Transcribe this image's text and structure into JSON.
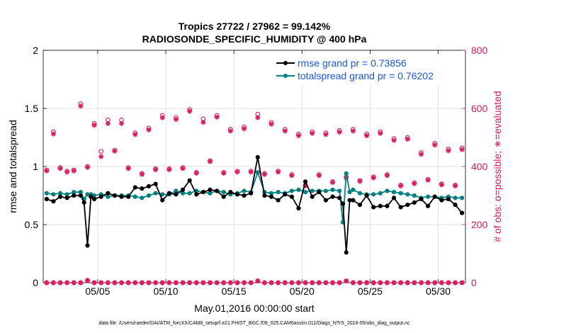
{
  "chart_data": {
    "type": "line",
    "title": "Tropics 27722 / 27962 = 99.142%",
    "subtitle": "RADIOSONDE_SPECIFIC_HUMIDITY @ 400 hPa",
    "xlabel": "May.01,2016 00:00:00 start",
    "ylabel_left": "rmse and totalspread",
    "ylabel_right": "# of obs: o=possible; ∗=evaluated",
    "footer": "data file: /Users/raeder/DAI/ATM_forcXX/CAM6_setup/f.e21.FHIST_BGC.f09_025.CAM6assim.011/Diags_NTrS_2016-05/obs_diag_output.nc",
    "xlim": [
      1,
      32
    ],
    "ylim_left": [
      0,
      2
    ],
    "ylim_right": [
      0,
      800
    ],
    "x_ticks": [
      5,
      10,
      15,
      20,
      25,
      30
    ],
    "x_tick_labels": [
      "05/05",
      "05/10",
      "05/15",
      "05/20",
      "05/25",
      "05/30"
    ],
    "y_ticks_left": [
      0,
      0.5,
      1,
      1.5,
      2
    ],
    "y_tick_labels_left": [
      "0",
      "0.5",
      "1",
      "1.5",
      "2"
    ],
    "y_ticks_right": [
      0,
      200,
      400,
      600,
      800
    ],
    "y_tick_labels_right": [
      "0",
      "200",
      "400",
      "600",
      "800"
    ],
    "colors": {
      "rmse": "#000000",
      "spread": "#008080",
      "counts": "#e0165a",
      "legend_text": "#1a55e6",
      "grid": "#d9d9d9"
    },
    "legend": [
      {
        "name": "rmse grand pr = 0.73856",
        "color": "#000000"
      },
      {
        "name": "totalspread grand pr = 0.76202",
        "color": "#008080"
      }
    ],
    "rmse_points": [
      [
        1.25,
        0.72
      ],
      [
        1.75,
        0.7
      ],
      [
        2.25,
        0.74
      ],
      [
        2.75,
        0.73
      ],
      [
        3.25,
        0.75
      ],
      [
        3.75,
        0.75
      ],
      [
        4.0,
        0.69
      ],
      [
        4.25,
        0.32
      ],
      [
        4.5,
        0.74
      ],
      [
        4.75,
        0.72
      ],
      [
        5.25,
        0.74
      ],
      [
        5.75,
        0.77
      ],
      [
        6.25,
        0.75
      ],
      [
        6.75,
        0.74
      ],
      [
        7.25,
        0.74
      ],
      [
        7.75,
        0.82
      ],
      [
        8.25,
        0.81
      ],
      [
        8.75,
        0.83
      ],
      [
        9.25,
        0.85
      ],
      [
        9.75,
        0.71
      ],
      [
        10.25,
        0.77
      ],
      [
        10.75,
        0.76
      ],
      [
        11.25,
        0.8
      ],
      [
        11.75,
        0.88
      ],
      [
        12.25,
        0.76
      ],
      [
        12.75,
        0.78
      ],
      [
        13.25,
        0.8
      ],
      [
        13.75,
        0.79
      ],
      [
        14.25,
        0.74
      ],
      [
        14.75,
        0.78
      ],
      [
        15.25,
        0.76
      ],
      [
        15.75,
        0.75
      ],
      [
        16.25,
        0.77
      ],
      [
        16.75,
        1.08
      ],
      [
        17.25,
        0.75
      ],
      [
        17.75,
        0.74
      ],
      [
        18.25,
        0.71
      ],
      [
        18.75,
        0.76
      ],
      [
        19.25,
        0.74
      ],
      [
        19.75,
        0.64
      ],
      [
        20.25,
        0.87
      ],
      [
        20.75,
        0.74
      ],
      [
        21.25,
        0.78
      ],
      [
        21.75,
        0.71
      ],
      [
        22.25,
        0.74
      ],
      [
        22.75,
        0.73
      ],
      [
        23.0,
        0.68
      ],
      [
        23.25,
        0.26
      ],
      [
        23.5,
        0.71
      ],
      [
        23.75,
        0.71
      ],
      [
        24.25,
        0.67
      ],
      [
        24.75,
        0.75
      ],
      [
        25.25,
        0.65
      ],
      [
        25.75,
        0.66
      ],
      [
        26.25,
        0.66
      ],
      [
        26.75,
        0.73
      ],
      [
        27.25,
        0.65
      ],
      [
        27.75,
        0.67
      ],
      [
        28.25,
        0.69
      ],
      [
        28.75,
        0.72
      ],
      [
        29.25,
        0.66
      ],
      [
        29.75,
        0.74
      ],
      [
        30.25,
        0.71
      ],
      [
        30.75,
        0.72
      ],
      [
        31.25,
        0.67
      ],
      [
        31.75,
        0.6
      ]
    ],
    "spread_points": [
      [
        1.25,
        0.77
      ],
      [
        1.75,
        0.76
      ],
      [
        2.25,
        0.77
      ],
      [
        2.75,
        0.76
      ],
      [
        3.25,
        0.78
      ],
      [
        3.75,
        0.78
      ],
      [
        4.0,
        0.72
      ],
      [
        4.25,
        0.76
      ],
      [
        4.5,
        0.76
      ],
      [
        4.75,
        0.75
      ],
      [
        5.25,
        0.76
      ],
      [
        5.75,
        0.74
      ],
      [
        6.25,
        0.75
      ],
      [
        6.75,
        0.75
      ],
      [
        7.25,
        0.75
      ],
      [
        7.75,
        0.74
      ],
      [
        8.25,
        0.73
      ],
      [
        8.75,
        0.75
      ],
      [
        9.25,
        0.77
      ],
      [
        9.75,
        0.76
      ],
      [
        10.25,
        0.76
      ],
      [
        10.75,
        0.79
      ],
      [
        11.25,
        0.77
      ],
      [
        11.75,
        0.77
      ],
      [
        12.25,
        0.79
      ],
      [
        12.75,
        0.78
      ],
      [
        13.25,
        0.77
      ],
      [
        13.75,
        0.79
      ],
      [
        14.25,
        0.78
      ],
      [
        14.75,
        0.76
      ],
      [
        15.25,
        0.77
      ],
      [
        15.75,
        0.79
      ],
      [
        16.25,
        0.78
      ],
      [
        16.75,
        0.95
      ],
      [
        17.25,
        0.78
      ],
      [
        17.75,
        0.77
      ],
      [
        18.25,
        0.78
      ],
      [
        18.75,
        0.77
      ],
      [
        19.25,
        0.79
      ],
      [
        19.75,
        0.8
      ],
      [
        20.25,
        0.78
      ],
      [
        20.75,
        0.79
      ],
      [
        21.25,
        0.79
      ],
      [
        21.75,
        0.79
      ],
      [
        22.25,
        0.8
      ],
      [
        22.75,
        0.79
      ],
      [
        23.0,
        0.52
      ],
      [
        23.25,
        0.94
      ],
      [
        23.5,
        0.78
      ],
      [
        23.75,
        0.8
      ],
      [
        24.25,
        0.77
      ],
      [
        24.75,
        0.76
      ],
      [
        25.25,
        0.76
      ],
      [
        25.75,
        0.77
      ],
      [
        26.25,
        0.79
      ],
      [
        26.75,
        0.78
      ],
      [
        27.25,
        0.77
      ],
      [
        27.75,
        0.76
      ],
      [
        28.25,
        0.75
      ],
      [
        28.75,
        0.73
      ],
      [
        29.25,
        0.74
      ],
      [
        29.75,
        0.74
      ],
      [
        30.25,
        0.73
      ],
      [
        30.75,
        0.74
      ],
      [
        31.25,
        0.73
      ],
      [
        31.75,
        0.73
      ]
    ],
    "possible_counts": [
      [
        1.25,
        388
      ],
      [
        1.75,
        520
      ],
      [
        2.25,
        396
      ],
      [
        2.75,
        384
      ],
      [
        3.25,
        388
      ],
      [
        3.75,
        616
      ],
      [
        4.25,
        400
      ],
      [
        4.75,
        548
      ],
      [
        5.25,
        452
      ],
      [
        5.75,
        560
      ],
      [
        6.25,
        456
      ],
      [
        6.75,
        560
      ],
      [
        7.25,
        396
      ],
      [
        7.75,
        516
      ],
      [
        8.25,
        376
      ],
      [
        8.75,
        532
      ],
      [
        9.25,
        392
      ],
      [
        9.75,
        576
      ],
      [
        10.25,
        392
      ],
      [
        10.75,
        568
      ],
      [
        11.25,
        396
      ],
      [
        11.75,
        596
      ],
      [
        12.25,
        380
      ],
      [
        12.75,
        564
      ],
      [
        13.25,
        420
      ],
      [
        13.75,
        576
      ],
      [
        14.25,
        380
      ],
      [
        14.75,
        528
      ],
      [
        15.25,
        384
      ],
      [
        15.75,
        536
      ],
      [
        16.25,
        384
      ],
      [
        16.75,
        580
      ],
      [
        17.25,
        376
      ],
      [
        17.75,
        552
      ],
      [
        18.25,
        384
      ],
      [
        18.75,
        528
      ],
      [
        19.25,
        372
      ],
      [
        19.75,
        512
      ],
      [
        20.25,
        336
      ],
      [
        20.75,
        520
      ],
      [
        21.25,
        372
      ],
      [
        21.75,
        516
      ],
      [
        22.25,
        348
      ],
      [
        22.75,
        524
      ],
      [
        23.25,
        364
      ],
      [
        23.75,
        528
      ],
      [
        24.25,
        352
      ],
      [
        24.75,
        512
      ],
      [
        25.25,
        364
      ],
      [
        25.75,
        520
      ],
      [
        26.25,
        372
      ],
      [
        26.75,
        496
      ],
      [
        27.25,
        336
      ],
      [
        27.75,
        500
      ],
      [
        28.25,
        344
      ],
      [
        28.75,
        448
      ],
      [
        29.25,
        356
      ],
      [
        29.75,
        480
      ],
      [
        30.25,
        340
      ],
      [
        30.75,
        460
      ],
      [
        31.25,
        336
      ],
      [
        31.75,
        464
      ]
    ],
    "evaluated_counts": [
      [
        1.25,
        385
      ],
      [
        1.75,
        512
      ],
      [
        2.25,
        393
      ],
      [
        2.75,
        381
      ],
      [
        3.25,
        385
      ],
      [
        3.75,
        608
      ],
      [
        4.25,
        397
      ],
      [
        4.75,
        542
      ],
      [
        5.25,
        434
      ],
      [
        5.75,
        548
      ],
      [
        6.25,
        453
      ],
      [
        6.75,
        548
      ],
      [
        7.25,
        393
      ],
      [
        7.75,
        510
      ],
      [
        8.25,
        373
      ],
      [
        8.75,
        526
      ],
      [
        9.25,
        389
      ],
      [
        9.75,
        568
      ],
      [
        10.25,
        389
      ],
      [
        10.75,
        562
      ],
      [
        11.25,
        393
      ],
      [
        11.75,
        590
      ],
      [
        12.25,
        377
      ],
      [
        12.75,
        552
      ],
      [
        13.25,
        417
      ],
      [
        13.75,
        570
      ],
      [
        14.25,
        377
      ],
      [
        14.75,
        522
      ],
      [
        15.25,
        381
      ],
      [
        15.75,
        530
      ],
      [
        16.25,
        381
      ],
      [
        16.75,
        568
      ],
      [
        17.25,
        373
      ],
      [
        17.75,
        546
      ],
      [
        18.25,
        381
      ],
      [
        18.75,
        522
      ],
      [
        19.25,
        369
      ],
      [
        19.75,
        506
      ],
      [
        20.25,
        333
      ],
      [
        20.75,
        514
      ],
      [
        21.25,
        369
      ],
      [
        21.75,
        510
      ],
      [
        22.25,
        345
      ],
      [
        22.75,
        518
      ],
      [
        23.25,
        361
      ],
      [
        23.75,
        522
      ],
      [
        24.25,
        349
      ],
      [
        24.75,
        506
      ],
      [
        25.25,
        361
      ],
      [
        25.75,
        514
      ],
      [
        26.25,
        369
      ],
      [
        26.75,
        490
      ],
      [
        27.25,
        333
      ],
      [
        27.75,
        494
      ],
      [
        28.25,
        341
      ],
      [
        28.75,
        442
      ],
      [
        29.25,
        353
      ],
      [
        29.75,
        474
      ],
      [
        30.25,
        337
      ],
      [
        30.75,
        454
      ],
      [
        31.25,
        333
      ],
      [
        31.75,
        458
      ]
    ],
    "low_counts_x": [
      1.25,
      1.75,
      2.25,
      2.75,
      3.25,
      3.75,
      4.25,
      4.75,
      5.25,
      5.75,
      6.25,
      6.75,
      7.25,
      7.75,
      8.25,
      8.75,
      9.25,
      9.75,
      10.25,
      10.75,
      11.25,
      11.75,
      12.25,
      12.75,
      13.25,
      13.75,
      14.25,
      14.75,
      15.25,
      15.75,
      16.25,
      16.75,
      17.25,
      17.75,
      18.25,
      18.75,
      19.25,
      19.75,
      20.25,
      20.75,
      21.25,
      21.75,
      22.25,
      22.75,
      23.25,
      23.75,
      24.25,
      24.75,
      25.25,
      25.75,
      26.25,
      26.75,
      27.25,
      27.75,
      28.25,
      28.75,
      29.25,
      29.75,
      30.25,
      30.75,
      31.25,
      31.75
    ],
    "low_counts_y": [
      0,
      0,
      0,
      0,
      0,
      0,
      8,
      0,
      0,
      0,
      0,
      0,
      0,
      0,
      0,
      0,
      0,
      0,
      0,
      0,
      0,
      0,
      0,
      0,
      0,
      0,
      0,
      0,
      0,
      0,
      0,
      6,
      0,
      0,
      0,
      0,
      0,
      0,
      0,
      0,
      0,
      0,
      0,
      0,
      6,
      0,
      0,
      0,
      0,
      0,
      0,
      0,
      0,
      0,
      0,
      0,
      0,
      0,
      0,
      0,
      0,
      0
    ]
  }
}
